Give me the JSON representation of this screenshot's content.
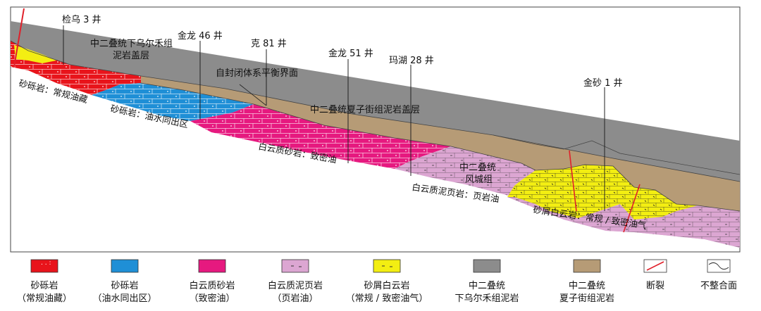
{
  "colors": {
    "conglomerate_conventional": "#e8141b",
    "conglomerate_oil_water": "#1f8fd6",
    "dolomitic_sandstone": "#e6197f",
    "dolomitic_shale": "#dca6d2",
    "dolomite_debris": "#f3ee12",
    "wuerhe_mudstone": "#8c8c8c",
    "xiazijie_mudstone": "#b69b76",
    "fault": "#e0202a"
  },
  "wells": [
    {
      "name": "检乌 3 井"
    },
    {
      "name": "金龙 46 井"
    },
    {
      "name": "克 81 井"
    },
    {
      "name": "金龙 51 井"
    },
    {
      "name": "玛湖 28 井"
    },
    {
      "name": "金砂 1 井"
    }
  ],
  "annotations": {
    "wuerhe_cap": [
      "中二叠统下乌尔禾组",
      "泥岩盖层"
    ],
    "balance": "自封闭体系平衡界面",
    "xiazijie_cap": "中二叠统夏子街组泥岩盖层",
    "fengcheng": [
      "中二叠统",
      "风城组"
    ],
    "conglomerate_conventional": "砂砾岩：常规油藏",
    "conglomerate_oil_water": "砂砾岩：油水同出区",
    "dolomitic_sandstone": "白云质砂岩：致密油",
    "dolomitic_shale": "白云质泥页岩：页岩油",
    "dolomite_debris": "砂屑白云岩：常规 / 致密油气"
  },
  "legend": [
    {
      "swatch": "conglomerate_conventional",
      "line1": "砂砾岩",
      "line2": "（常规油藏）"
    },
    {
      "swatch": "conglomerate_oil_water",
      "line1": "砂砾岩",
      "line2": "（油水同出区）"
    },
    {
      "swatch": "dolomitic_sandstone",
      "line1": "白云质砂岩",
      "line2": "（致密油）"
    },
    {
      "swatch": "dolomitic_shale",
      "line1": "白云质泥页岩",
      "line2": "（页岩油）"
    },
    {
      "swatch": "dolomite_debris",
      "line1": "砂屑白云岩",
      "line2": "（常规 / 致密油气）"
    },
    {
      "swatch": "wuerhe_mudstone",
      "line1": "中二叠统",
      "line2": "下乌尔禾组泥岩"
    },
    {
      "swatch": "xiazijie_mudstone",
      "line1": "中二叠统",
      "line2": "夏子街组泥岩"
    },
    {
      "swatch": "fault",
      "line1": "断裂",
      "line2": ""
    },
    {
      "swatch": "unconformity",
      "line1": "不整合面",
      "line2": ""
    }
  ]
}
